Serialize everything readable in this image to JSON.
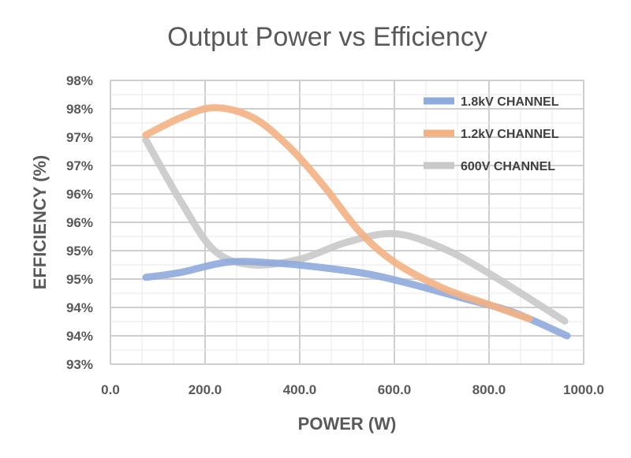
{
  "chart_data": {
    "type": "line",
    "title": "Output Power vs Efficiency",
    "xlabel": "POWER (W)",
    "ylabel": "EFFICIENCY (%)",
    "xlim": [
      0,
      1000
    ],
    "ylim": [
      93,
      98
    ],
    "x_tick_values": [
      0,
      200,
      400,
      600,
      800,
      1000
    ],
    "x_tick_labels": [
      "0.0",
      "200.0",
      "400.0",
      "600.0",
      "800.0",
      "1000.0"
    ],
    "y_tick_values": [
      93,
      93.5,
      94,
      94.5,
      95,
      95.5,
      96,
      96.5,
      97,
      97.5,
      98
    ],
    "y_tick_labels": [
      "93%",
      "94%",
      "94%",
      "95%",
      "95%",
      "96%",
      "96%",
      "97%",
      "97%",
      "98%",
      "98%"
    ],
    "grid": true,
    "legend_position": "top-right",
    "series": [
      {
        "name": "1.8kV CHANNEL",
        "color": "#8faadc",
        "x": [
          75,
          150,
          250,
          350,
          450,
          550,
          650,
          750,
          850,
          965
        ],
        "y": [
          94.53,
          94.62,
          94.8,
          94.78,
          94.7,
          94.58,
          94.38,
          94.15,
          93.92,
          93.5
        ]
      },
      {
        "name": "1.2kV CHANNEL",
        "color": "#f4b183",
        "x": [
          75,
          150,
          220,
          300,
          375,
          450,
          525,
          600,
          700,
          800,
          885
        ],
        "y": [
          97.04,
          97.35,
          97.52,
          97.35,
          96.85,
          96.15,
          95.35,
          94.8,
          94.35,
          94.05,
          93.8
        ]
      },
      {
        "name": "600V CHANNEL",
        "color": "#c9c9c9",
        "x": [
          75,
          150,
          220,
          300,
          400,
          500,
          600,
          700,
          800,
          960
        ],
        "y": [
          96.95,
          95.85,
          95.0,
          94.75,
          94.85,
          95.15,
          95.3,
          95.05,
          94.6,
          93.76
        ]
      }
    ]
  }
}
